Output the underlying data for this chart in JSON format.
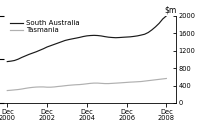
{
  "ylim": [
    0,
    2000
  ],
  "yticks": [
    0,
    400,
    800,
    1200,
    1600,
    2000
  ],
  "ytick_labels": [
    "0",
    "400",
    "800",
    "1200",
    "1600",
    "2000"
  ],
  "xtick_labels": [
    "Dec\n2000",
    "Dec\n2002",
    "Dec\n2004",
    "Dec\n2006",
    "Dec\n2008"
  ],
  "xtick_positions": [
    0,
    2,
    4,
    6,
    8
  ],
  "xlim": [
    -0.15,
    8.5
  ],
  "sa_color": "#1a1a1a",
  "tas_color": "#b0b0b0",
  "legend_labels": [
    "South Australia",
    "Tasmania"
  ],
  "sa_values": [
    950,
    960,
    975,
    1005,
    1045,
    1080,
    1115,
    1145,
    1175,
    1210,
    1245,
    1285,
    1315,
    1345,
    1375,
    1405,
    1435,
    1455,
    1472,
    1488,
    1505,
    1525,
    1540,
    1548,
    1552,
    1548,
    1538,
    1523,
    1510,
    1503,
    1498,
    1502,
    1508,
    1513,
    1518,
    1528,
    1540,
    1558,
    1578,
    1618,
    1678,
    1748,
    1828,
    1928,
    2000
  ],
  "tas_values": [
    285,
    292,
    300,
    308,
    320,
    335,
    348,
    358,
    365,
    368,
    368,
    362,
    362,
    368,
    378,
    386,
    396,
    405,
    412,
    418,
    422,
    430,
    440,
    450,
    456,
    456,
    450,
    445,
    445,
    450,
    455,
    460,
    466,
    472,
    478,
    482,
    487,
    492,
    502,
    512,
    522,
    532,
    542,
    552,
    562
  ],
  "n_points": 45,
  "legend_fontsize": 5.0,
  "tick_fontsize": 4.8,
  "ylabel_fontsize": 5.5
}
